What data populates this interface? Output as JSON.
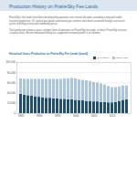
{
  "header": {
    "title": "Production History on PrairieSky Fee Lands"
  },
  "paragraphs": [
    "PrairieSky's fee lands have been developed by operators over several decades, providing a long and stable record of production. Oil, natural gas liquids and natural gas volumes have been sustained through successive cycles of drilling activity and commodity prices.",
    "Total production shown is gross volumes from all operators on PrairieSky fee lands, of which PrairieSky receives a royalty share. Recent horizontal drilling has supported renewed growth in oil volumes."
  ],
  "chart_data": {
    "type": "bar",
    "stacked": true,
    "title": "Historical Gross Production on PrairieSky Fee Lands (boe/d)",
    "categories": [
      "1985",
      null,
      null,
      null,
      null,
      "1990",
      null,
      null,
      null,
      null,
      "1995",
      null,
      null,
      null,
      null,
      "2000",
      null,
      null,
      null,
      null,
      "2005",
      null,
      null,
      null,
      null,
      "2010",
      null,
      null,
      null,
      null
    ],
    "series": [
      {
        "name": "Oil & NGLs",
        "color": "#1f4e79",
        "values": [
          38000,
          36000,
          35000,
          34000,
          33000,
          32000,
          31000,
          30000,
          30000,
          29000,
          29000,
          28000,
          28000,
          27000,
          27000,
          26000,
          25000,
          25000,
          24000,
          24000,
          23000,
          23000,
          22000,
          22000,
          21000,
          21000,
          22000,
          24000,
          26000,
          27000
        ]
      },
      {
        "name": "Natural Gas",
        "color": "#a9c4de",
        "values": [
          30000,
          31000,
          32000,
          33000,
          34000,
          35000,
          36000,
          37000,
          37000,
          38000,
          38000,
          39000,
          40000,
          41000,
          42000,
          42000,
          41000,
          40000,
          40000,
          39000,
          38000,
          37000,
          36000,
          34000,
          32000,
          30000,
          29000,
          28000,
          28000,
          27000
        ]
      }
    ],
    "ylim": [
      0,
      100000
    ],
    "yticks": [
      0,
      {
        "value": 20000,
        "label": "20,000"
      },
      {
        "value": 40000,
        "label": "40,000"
      },
      {
        "value": 60000,
        "label": "60,000"
      },
      {
        "value": 80000,
        "label": "80,000"
      },
      {
        "value": 100000,
        "label": "100,000"
      }
    ],
    "grid": true,
    "legend": "top-right"
  }
}
